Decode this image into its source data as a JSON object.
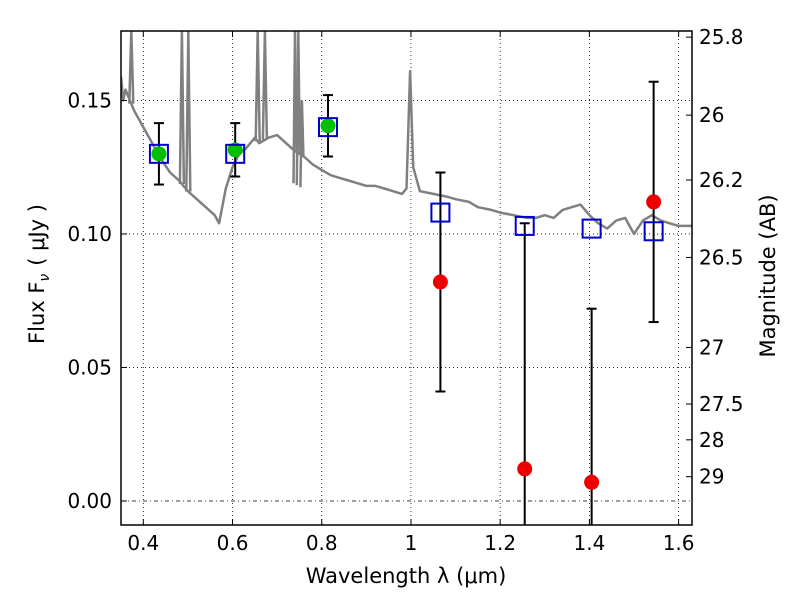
{
  "chart_data": {
    "type": "scatter",
    "xlabel": "Wavelength  λ (μm)",
    "ylabel_left": "Flux  F",
    "ylabel_left_sub": "ν",
    "ylabel_left_unit": "( μJy )",
    "ylabel_right": "Magnitude (AB)",
    "xlim": [
      0.35,
      1.63
    ],
    "ylim": [
      -0.009,
      0.176
    ],
    "grid": true,
    "x_ticks": [
      {
        "value": 0.4,
        "label": "0.4"
      },
      {
        "value": 0.6,
        "label": "0.6"
      },
      {
        "value": 0.8,
        "label": "0.8"
      },
      {
        "value": 1.0,
        "label": "1"
      },
      {
        "value": 1.2,
        "label": "1.2"
      },
      {
        "value": 1.4,
        "label": "1.4"
      },
      {
        "value": 1.6,
        "label": "1.6"
      }
    ],
    "y_ticks": [
      {
        "value": 0.0,
        "label": "0.00"
      },
      {
        "value": 0.05,
        "label": "0.05"
      },
      {
        "value": 0.1,
        "label": "0.10"
      },
      {
        "value": 0.15,
        "label": "0.15"
      }
    ],
    "mag_ticks": [
      {
        "label": "25.8",
        "flux": 0.1737
      },
      {
        "label": "26",
        "flux": 0.1445
      },
      {
        "label": "26.2",
        "flux": 0.1202
      },
      {
        "label": "26.5",
        "flux": 0.0912
      },
      {
        "label": "27",
        "flux": 0.0575
      },
      {
        "label": "27.5",
        "flux": 0.0363
      },
      {
        "label": "28",
        "flux": 0.0229
      },
      {
        "label": "29",
        "flux": 0.0091
      }
    ],
    "series": [
      {
        "marker": "circle",
        "color": "#00c000",
        "points": [
          {
            "x": 0.435,
            "y": 0.13,
            "err": 0.0115
          },
          {
            "x": 0.606,
            "y": 0.1315,
            "err": 0.01
          },
          {
            "x": 0.814,
            "y": 0.1405,
            "err": 0.0115
          }
        ]
      },
      {
        "marker": "circle",
        "color": "#ee0000",
        "points": [
          {
            "x": 1.066,
            "y": 0.082,
            "err": 0.041
          },
          {
            "x": 1.255,
            "y": 0.012,
            "err": 0.092
          },
          {
            "x": 1.405,
            "y": 0.007,
            "err": 0.065
          },
          {
            "x": 1.544,
            "y": 0.112,
            "err": 0.045
          }
        ]
      },
      {
        "marker": "open-square",
        "color": "#0000cc",
        "points": [
          {
            "x": 0.435,
            "y": 0.13
          },
          {
            "x": 0.606,
            "y": 0.13
          },
          {
            "x": 0.814,
            "y": 0.14
          },
          {
            "x": 1.066,
            "y": 0.108
          },
          {
            "x": 1.255,
            "y": 0.103
          },
          {
            "x": 1.405,
            "y": 0.102
          },
          {
            "x": 1.544,
            "y": 0.101
          }
        ]
      }
    ],
    "model_sed": {
      "color": "#808080",
      "points": [
        [
          0.35,
          0.159
        ],
        [
          0.355,
          0.15
        ],
        [
          0.36,
          0.154
        ],
        [
          0.37,
          0.15
        ],
        [
          0.38,
          0.146
        ],
        [
          0.4,
          0.14
        ],
        [
          0.42,
          0.134
        ],
        [
          0.44,
          0.128
        ],
        [
          0.46,
          0.123
        ],
        [
          0.48,
          0.12
        ],
        [
          0.5,
          0.116
        ],
        [
          0.52,
          0.113
        ],
        [
          0.54,
          0.11
        ],
        [
          0.56,
          0.107
        ],
        [
          0.57,
          0.104
        ],
        [
          0.585,
          0.117
        ],
        [
          0.6,
          0.125
        ],
        [
          0.615,
          0.13
        ],
        [
          0.63,
          0.132
        ],
        [
          0.65,
          0.136
        ],
        [
          0.66,
          0.134
        ],
        [
          0.68,
          0.136
        ],
        [
          0.7,
          0.137
        ],
        [
          0.72,
          0.134
        ],
        [
          0.74,
          0.131
        ],
        [
          0.76,
          0.129
        ],
        [
          0.78,
          0.126
        ],
        [
          0.8,
          0.124
        ],
        [
          0.82,
          0.122
        ],
        [
          0.84,
          0.121
        ],
        [
          0.86,
          0.12
        ],
        [
          0.88,
          0.119
        ],
        [
          0.9,
          0.118
        ],
        [
          0.92,
          0.118
        ],
        [
          0.94,
          0.117
        ],
        [
          0.96,
          0.116
        ],
        [
          0.98,
          0.115
        ],
        [
          0.99,
          0.117
        ],
        [
          0.998,
          0.161
        ],
        [
          1.005,
          0.125
        ],
        [
          1.02,
          0.116
        ],
        [
          1.05,
          0.115
        ],
        [
          1.08,
          0.114
        ],
        [
          1.1,
          0.113
        ],
        [
          1.13,
          0.112
        ],
        [
          1.15,
          0.11
        ],
        [
          1.18,
          0.109
        ],
        [
          1.2,
          0.108
        ],
        [
          1.23,
          0.107
        ],
        [
          1.26,
          0.106
        ],
        [
          1.28,
          0.106
        ],
        [
          1.3,
          0.107
        ],
        [
          1.32,
          0.106
        ],
        [
          1.34,
          0.109
        ],
        [
          1.36,
          0.11
        ],
        [
          1.38,
          0.111
        ],
        [
          1.4,
          0.107
        ],
        [
          1.42,
          0.104
        ],
        [
          1.44,
          0.102
        ],
        [
          1.46,
          0.105
        ],
        [
          1.48,
          0.106
        ],
        [
          1.5,
          0.1
        ],
        [
          1.52,
          0.105
        ],
        [
          1.54,
          0.107
        ],
        [
          1.56,
          0.105
        ],
        [
          1.58,
          0.104
        ],
        [
          1.6,
          0.103
        ],
        [
          1.63,
          0.103
        ]
      ],
      "emission_lines": [
        {
          "x": 0.373,
          "y": 0.176
        },
        {
          "x": 0.4865,
          "y": 0.176
        },
        {
          "x": 0.5008,
          "y": 0.176
        },
        {
          "x": 0.6565,
          "y": 0.176
        },
        {
          "x": 0.6725,
          "y": 0.176
        }
      ]
    }
  }
}
